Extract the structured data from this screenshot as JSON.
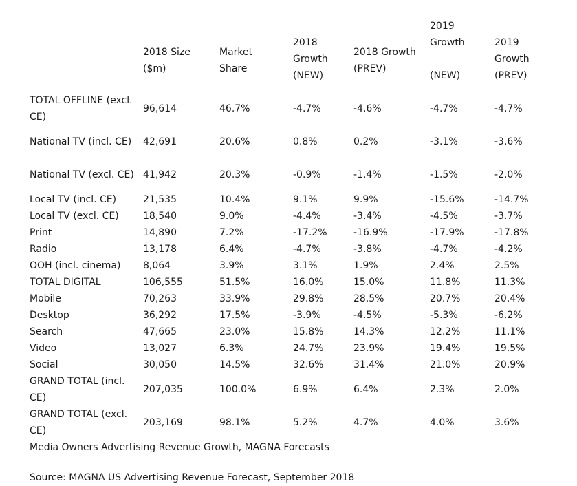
{
  "table": {
    "headers": [
      "",
      "2018 Size ($m)",
      "Market Share",
      "2018 Growth (NEW)",
      "2018 Growth (PREV)",
      "2019 Growth (NEW)",
      "2019 Growth (PREV)"
    ],
    "header_lines": {
      "size": [
        "2018 Size",
        "($m)"
      ],
      "share": [
        "Market",
        "Share"
      ],
      "g18_new": [
        "2018",
        "Growth",
        "(NEW)"
      ],
      "g18_prev": [
        "2018 Growth",
        "(PREV)"
      ],
      "g19_new": [
        "2019",
        "Growth",
        "",
        "(NEW)"
      ],
      "g19_prev": [
        "2019",
        "Growth",
        "(PREV)"
      ]
    },
    "rows": [
      {
        "label": "TOTAL OFFLINE (excl. CE)",
        "size": "96,614",
        "share": "46.7%",
        "g18_new": "-4.7%",
        "g18_prev": "-4.6%",
        "g19_new": "-4.7%",
        "g19_prev": "-4.7%"
      },
      {
        "label": "National TV (incl. CE)",
        "size": "42,691",
        "share": "20.6%",
        "g18_new": "0.8%",
        "g18_prev": "0.2%",
        "g19_new": "-3.1%",
        "g19_prev": "-3.6%"
      },
      {
        "label": "National TV (excl. CE)",
        "size": "41,942",
        "share": "20.3%",
        "g18_new": "-0.9%",
        "g18_prev": "-1.4%",
        "g19_new": "-1.5%",
        "g19_prev": "-2.0%"
      },
      {
        "label": "Local TV (incl. CE)",
        "size": "21,535",
        "share": "10.4%",
        "g18_new": "9.1%",
        "g18_prev": "9.9%",
        "g19_new": "-15.6%",
        "g19_prev": "-14.7%"
      },
      {
        "label": "Local TV (excl. CE)",
        "size": "18,540",
        "share": "9.0%",
        "g18_new": "-4.4%",
        "g18_prev": "-3.4%",
        "g19_new": "-4.5%",
        "g19_prev": "-3.7%"
      },
      {
        "label": "Print",
        "size": "14,890",
        "share": "7.2%",
        "g18_new": "-17.2%",
        "g18_prev": "-16.9%",
        "g19_new": "-17.9%",
        "g19_prev": "-17.8%"
      },
      {
        "label": "Radio",
        "size": "13,178",
        "share": "6.4%",
        "g18_new": "-4.7%",
        "g18_prev": "-3.8%",
        "g19_new": "-4.7%",
        "g19_prev": "-4.2%"
      },
      {
        "label": "OOH (incl. cinema)",
        "size": "8,064",
        "share": "3.9%",
        "g18_new": "3.1%",
        "g18_prev": "1.9%",
        "g19_new": "2.4%",
        "g19_prev": "2.5%"
      },
      {
        "label": "TOTAL DIGITAL",
        "size": "106,555",
        "share": "51.5%",
        "g18_new": "16.0%",
        "g18_prev": "15.0%",
        "g19_new": "11.8%",
        "g19_prev": "11.3%"
      },
      {
        "label": "Mobile",
        "size": "70,263",
        "share": "33.9%",
        "g18_new": "29.8%",
        "g18_prev": "28.5%",
        "g19_new": "20.7%",
        "g19_prev": "20.4%"
      },
      {
        "label": "Desktop",
        "size": "36,292",
        "share": "17.5%",
        "g18_new": "-3.9%",
        "g18_prev": "-4.5%",
        "g19_new": "-5.3%",
        "g19_prev": "-6.2%"
      },
      {
        "label": "Search",
        "size": "47,665",
        "share": "23.0%",
        "g18_new": "15.8%",
        "g18_prev": "14.3%",
        "g19_new": "12.2%",
        "g19_prev": "11.1%"
      },
      {
        "label": "Video",
        "size": "13,027",
        "share": "6.3%",
        "g18_new": "24.7%",
        "g18_prev": "23.9%",
        "g19_new": "19.4%",
        "g19_prev": "19.5%"
      },
      {
        "label": "Social",
        "size": "30,050",
        "share": "14.5%",
        "g18_new": "32.6%",
        "g18_prev": "31.4%",
        "g19_new": "21.0%",
        "g19_prev": "20.9%"
      },
      {
        "label": "GRAND TOTAL (incl. CE)",
        "size": "207,035",
        "share": "100.0%",
        "g18_new": "6.9%",
        "g18_prev": "6.4%",
        "g19_new": "2.3%",
        "g19_prev": "2.0%"
      },
      {
        "label": "GRAND TOTAL (excl. CE)",
        "size": "203,169",
        "share": "98.1%",
        "g18_new": "5.2%",
        "g18_prev": "4.7%",
        "g19_new": "4.0%",
        "g19_prev": "3.6%"
      }
    ]
  },
  "caption": "Media Owners Advertising Revenue Growth, MAGNA Forecasts",
  "source": "Source: MAGNA US Advertising Revenue Forecast, September 2018",
  "colors": {
    "text": "#1a1a1a",
    "background": "#ffffff"
  }
}
